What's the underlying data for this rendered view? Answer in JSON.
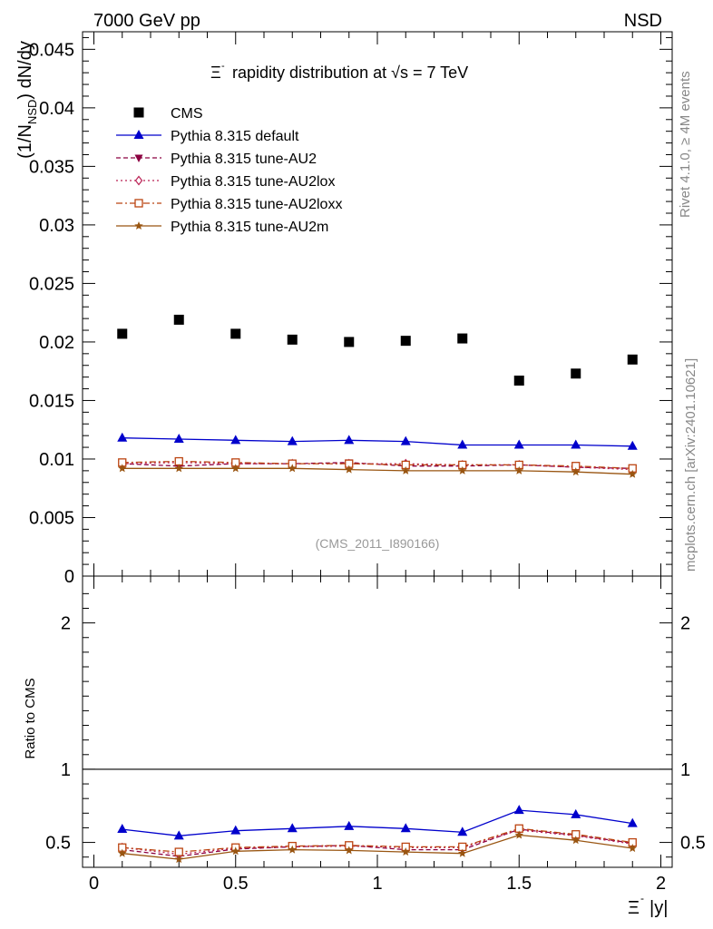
{
  "header": {
    "beam": "7000 GeV pp",
    "process": "NSD"
  },
  "side_labels": {
    "rivet": "Rivet 4.1.0, ≥ 4M events",
    "mcplots": "mcplots.cern.ch [arXiv:2401.10621]"
  },
  "chart_data": [
    {
      "type": "scatter",
      "title_left": "Ξ",
      "title_right": "rapidity distribution at √s = 7 TeV",
      "title": "Ξ⁻ rapidity distribution at √s = 7 TeV",
      "ylabel": "(1/N_NSD) dN/dy",
      "ylabel_main": "(1/N",
      "ylabel_sub": "NSD",
      "ylabel_end": ") dN/dy",
      "analysis_tag": "(CMS_2011_I890166)",
      "x": [
        0.1,
        0.3,
        0.5,
        0.7,
        0.9,
        1.1,
        1.3,
        1.5,
        1.7,
        1.9
      ],
      "xlim": [
        -0.04,
        2.04
      ],
      "ylim": [
        0,
        0.0465
      ],
      "yticks": [
        0,
        0.005,
        0.01,
        0.015,
        0.02,
        0.025,
        0.03,
        0.035,
        0.04,
        0.045
      ],
      "ytick_labels": [
        "0",
        "0.005",
        "0.01",
        "0.015",
        "0.02",
        "0.025",
        "0.03",
        "0.035",
        "0.04",
        "0.045"
      ],
      "legend_position": "top-left",
      "series": [
        {
          "name": "CMS",
          "color": "#000000",
          "marker": "square",
          "line": "none",
          "values": [
            0.0207,
            0.0219,
            0.0207,
            0.0202,
            0.02,
            0.0201,
            0.0203,
            0.0167,
            0.0173,
            0.0185
          ]
        },
        {
          "name": "Pythia 8.315 default",
          "color": "#0000cc",
          "marker": "triangle-up",
          "line": "solid",
          "values": [
            0.0118,
            0.0117,
            0.0116,
            0.0115,
            0.0116,
            0.0115,
            0.0112,
            0.0112,
            0.0112,
            0.0111
          ]
        },
        {
          "name": "Pythia 8.315 tune-AU2",
          "color": "#8b0040",
          "marker": "triangle-down",
          "line": "dashed",
          "values": [
            0.0096,
            0.0094,
            0.0096,
            0.0096,
            0.0097,
            0.0094,
            0.0094,
            0.0095,
            0.0093,
            0.0092
          ]
        },
        {
          "name": "Pythia 8.315 tune-AU2lox",
          "color": "#bb2255",
          "marker": "diamond-open",
          "line": "dotted",
          "values": [
            0.0096,
            0.0097,
            0.0096,
            0.0096,
            0.0096,
            0.0096,
            0.0095,
            0.0095,
            0.0093,
            0.0091
          ]
        },
        {
          "name": "Pythia 8.315 tune-AU2loxx",
          "color": "#bb4411",
          "marker": "square-open",
          "line": "dashdot",
          "values": [
            0.0097,
            0.0098,
            0.0097,
            0.0096,
            0.0096,
            0.0095,
            0.0095,
            0.0095,
            0.0094,
            0.0092
          ]
        },
        {
          "name": "Pythia 8.315 tune-AU2m",
          "color": "#995511",
          "marker": "star",
          "line": "solid",
          "values": [
            0.0092,
            0.0092,
            0.0092,
            0.0092,
            0.0091,
            0.009,
            0.009,
            0.009,
            0.0089,
            0.0087
          ]
        }
      ]
    },
    {
      "type": "line",
      "ylabel": "Ratio to CMS",
      "xlabel": "Ξ⁻ |y|",
      "xlabel_left": "Ξ",
      "xlabel_right": "|y|",
      "x": [
        0.1,
        0.3,
        0.5,
        0.7,
        0.9,
        1.1,
        1.3,
        1.5,
        1.7,
        1.9
      ],
      "xlim": [
        -0.04,
        2.04
      ],
      "ylim": [
        0.33,
        2.32
      ],
      "xticks": [
        0,
        0.5,
        1,
        1.5,
        2
      ],
      "xtick_labels": [
        "0",
        "0.5",
        "1",
        "1.5",
        "2"
      ],
      "yticks": [
        0.5,
        1,
        2
      ],
      "ytick_labels": [
        "0.5",
        "1",
        "2"
      ],
      "reference_line": 1,
      "series": [
        {
          "name": "Pythia 8.315 default",
          "color": "#0000cc",
          "marker": "triangle-up",
          "line": "solid",
          "values": [
            0.59,
            0.545,
            0.58,
            0.595,
            0.61,
            0.595,
            0.57,
            0.72,
            0.69,
            0.63
          ]
        },
        {
          "name": "Pythia 8.315 tune-AU2",
          "color": "#8b0040",
          "marker": "triangle-down",
          "line": "dashed",
          "values": [
            0.45,
            0.405,
            0.455,
            0.47,
            0.48,
            0.45,
            0.45,
            0.59,
            0.55,
            0.495
          ]
        },
        {
          "name": "Pythia 8.315 tune-AU2lox",
          "color": "#bb2255",
          "marker": "diamond-open",
          "line": "dotted",
          "values": [
            0.465,
            0.42,
            0.46,
            0.47,
            0.475,
            0.465,
            0.465,
            0.585,
            0.545,
            0.49
          ]
        },
        {
          "name": "Pythia 8.315 tune-AU2loxx",
          "color": "#bb4411",
          "marker": "square-open",
          "line": "dashdot",
          "values": [
            0.465,
            0.435,
            0.465,
            0.475,
            0.48,
            0.47,
            0.47,
            0.595,
            0.555,
            0.5
          ]
        },
        {
          "name": "Pythia 8.315 tune-AU2m",
          "color": "#995511",
          "marker": "star",
          "line": "solid",
          "values": [
            0.425,
            0.385,
            0.44,
            0.45,
            0.445,
            0.435,
            0.425,
            0.55,
            0.515,
            0.46
          ]
        }
      ]
    }
  ]
}
